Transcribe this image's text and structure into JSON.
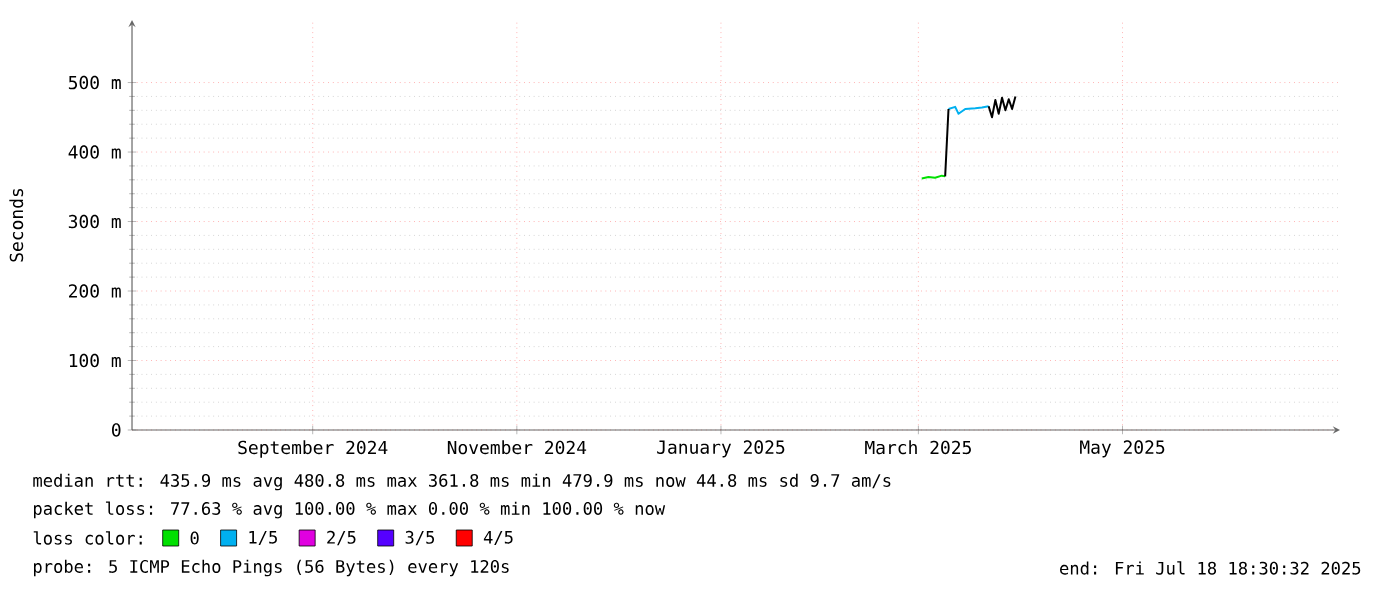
{
  "chart_data": {
    "type": "line",
    "ylabel": "Seconds",
    "legend_title": "loss color:",
    "legend": "bottom",
    "grid": true,
    "line_style": "solid",
    "xlim": [
      "2024-07-09",
      "2025-07-05"
    ],
    "xticks": [
      {
        "value": "2024-09-01",
        "label": "September 2024"
      },
      {
        "value": "2024-11-01",
        "label": "November 2024"
      },
      {
        "value": "2025-01-01",
        "label": "January 2025"
      },
      {
        "value": "2025-03-01",
        "label": "March 2025"
      },
      {
        "value": "2025-05-01",
        "label": "May 2025"
      }
    ],
    "ylim": [
      0,
      590
    ],
    "yticks": [
      0,
      {
        "value": 100,
        "label": "100 m"
      },
      {
        "value": 200,
        "label": "200 m"
      },
      {
        "value": 300,
        "label": "300 m"
      },
      {
        "value": 400,
        "label": "400 m"
      },
      {
        "value": 500,
        "label": "500 m"
      }
    ],
    "series": [
      {
        "name": "0",
        "color": "#00e000",
        "x": [
          "2025-03-02",
          "2025-03-04",
          "2025-03-06",
          "2025-03-08",
          "2025-03-09"
        ],
        "values": [
          362,
          364,
          363,
          366,
          365
        ]
      },
      {
        "name": "1/5",
        "color": "#00b0f0",
        "x": [
          "2025-03-10",
          "2025-03-12",
          "2025-03-13",
          "2025-03-15",
          "2025-03-18",
          "2025-03-20",
          "2025-03-22"
        ],
        "values": [
          462,
          465,
          455,
          462,
          463,
          464,
          466
        ]
      },
      {
        "name": "2/5",
        "color": "#e000e0"
      },
      {
        "name": "3/5",
        "color": "#5500ff"
      },
      {
        "name": "4/5",
        "color": "#ff0000"
      },
      {
        "color": "#000000",
        "x": [
          "2025-03-09",
          "2025-03-10",
          "2025-03-11",
          "2025-03-22",
          "2025-03-23",
          "2025-03-24",
          "2025-03-25",
          "2025-03-26",
          "2025-03-27",
          "2025-03-28",
          "2025-03-29",
          "2025-03-30"
        ],
        "values": [
          365,
          462,
          null,
          466,
          450,
          475,
          455,
          478,
          460,
          476,
          462,
          480
        ]
      }
    ],
    "annotations": [
      "median rtt:  435.9 ms avg  480.8 ms max  361.8 ms min  479.9 ms now  44.8 ms sd  9.7   am/s",
      "packet loss: 77.63 % avg  100.00 % max  0.00 % min  100.00 % now",
      "probe:       5 ICMP Echo Pings (56 Bytes) every 120s",
      "end: Fri Jul 18 18:30:32 2025"
    ]
  }
}
